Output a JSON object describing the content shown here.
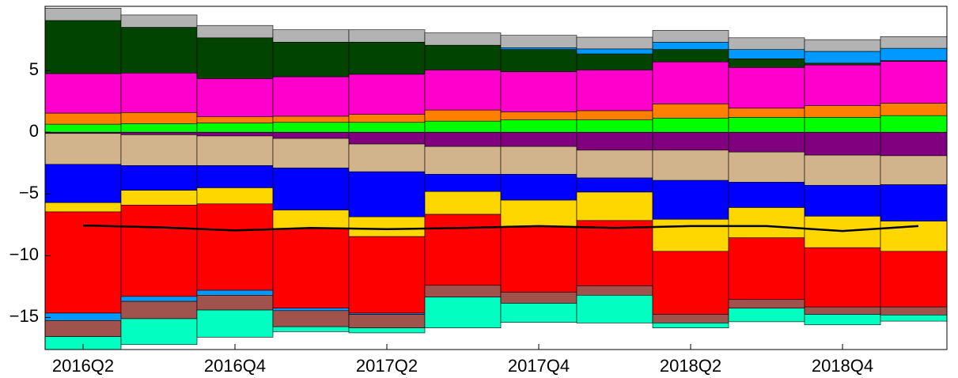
{
  "chart_data": {
    "type": "stacked-bar",
    "categories": [
      "2016Q2",
      null,
      "2016Q4",
      null,
      "2017Q2",
      null,
      "2017Q4",
      null,
      "2018Q2",
      null,
      "2018Q4",
      null
    ],
    "series": [
      {
        "color": "#00ff00",
        "values": [
          0.65,
          0.7,
          0.75,
          0.8,
          0.8,
          0.9,
          1.0,
          1.0,
          1.15,
          1.2,
          1.2,
          1.35
        ]
      },
      {
        "color": "#ff7f00",
        "values": [
          0.9,
          0.9,
          0.5,
          0.5,
          0.65,
          0.9,
          0.65,
          0.75,
          1.15,
          0.75,
          0.95,
          1.0
        ]
      },
      {
        "color": "#ff00cc",
        "values": [
          3.2,
          3.2,
          3.1,
          3.2,
          3.25,
          3.25,
          3.25,
          3.3,
          3.4,
          3.3,
          3.3,
          3.4
        ]
      },
      {
        "color": "#004400",
        "values": [
          4.3,
          3.7,
          3.3,
          2.8,
          2.6,
          2.0,
          1.8,
          1.3,
          1.0,
          0.7,
          0.15,
          0.05
        ]
      },
      {
        "color": "#0099ff",
        "values": [
          0,
          0,
          0,
          0,
          0,
          0,
          0.15,
          0.4,
          0.6,
          0.75,
          0.95,
          1.0
        ]
      },
      {
        "color": "#b3b3b3",
        "values": [
          1.0,
          1.0,
          1.0,
          1.0,
          1.0,
          1.0,
          1.0,
          0.95,
          0.95,
          0.95,
          0.95,
          0.95
        ]
      },
      {
        "color": "#800080",
        "values": [
          -0.1,
          -0.2,
          -0.3,
          -0.5,
          -0.95,
          -1.15,
          -1.15,
          -1.45,
          -1.45,
          -1.6,
          -1.85,
          -1.9
        ]
      },
      {
        "color": "#d2b48c",
        "values": [
          -2.5,
          -2.5,
          -2.4,
          -2.4,
          -2.25,
          -2.25,
          -2.25,
          -2.25,
          -2.45,
          -2.45,
          -2.45,
          -2.35
        ]
      },
      {
        "color": "#0000ff",
        "values": [
          -3.1,
          -2.0,
          -1.8,
          -3.4,
          -3.65,
          -1.4,
          -2.1,
          -1.15,
          -3.15,
          -2.05,
          -2.5,
          -2.95
        ]
      },
      {
        "color": "#ffd700",
        "values": [
          -0.75,
          -1.2,
          -1.3,
          -1.5,
          -1.6,
          -1.85,
          -2.15,
          -2.3,
          -2.6,
          -2.45,
          -2.55,
          -2.45
        ]
      },
      {
        "color": "#ff0000",
        "values": [
          -8.2,
          -7.4,
          -7.0,
          -6.45,
          -6.2,
          -5.75,
          -5.3,
          -5.3,
          -5.1,
          -5.0,
          -4.8,
          -4.5
        ]
      },
      {
        "color": "#0099ff",
        "values": [
          -0.6,
          -0.4,
          -0.4,
          -0.2,
          -0.1,
          0,
          0,
          0,
          0,
          0,
          0,
          0
        ]
      },
      {
        "color": "#a0524d",
        "values": [
          -1.3,
          -1.4,
          -1.2,
          -1.3,
          -1.1,
          -0.95,
          -0.9,
          -0.75,
          -0.7,
          -0.7,
          -0.6,
          -0.65
        ]
      },
      {
        "color": "#00ffc0",
        "values": [
          -1.1,
          -2.1,
          -2.2,
          -0.4,
          -0.4,
          -2.5,
          -1.55,
          -2.25,
          -0.4,
          -1.1,
          -0.85,
          -0.5
        ]
      }
    ],
    "line": {
      "color": "#000000",
      "values": [
        -7.55,
        -7.7,
        -7.95,
        -7.75,
        -7.85,
        -7.75,
        -7.6,
        -7.75,
        -7.6,
        -7.6,
        -8.0,
        -7.6
      ]
    },
    "ylim": [
      -17.6,
      10.2
    ],
    "yticks": [
      {
        "value": -15,
        "label": "−15"
      },
      {
        "value": -10,
        "label": "−10"
      },
      {
        "value": -5,
        "label": "−5"
      },
      0,
      5
    ],
    "grid": false
  }
}
